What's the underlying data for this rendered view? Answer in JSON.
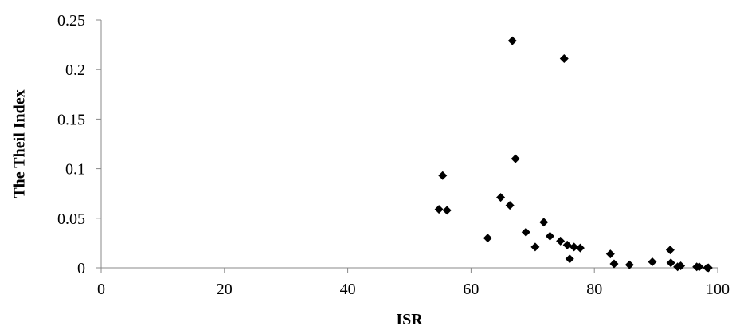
{
  "chart_data": {
    "type": "scatter",
    "title": "",
    "xlabel": "ISR",
    "ylabel": "The Theil Index",
    "xlim": [
      0,
      100
    ],
    "ylim": [
      0,
      0.25
    ],
    "x_ticks": [
      0,
      20,
      40,
      60,
      80,
      100
    ],
    "y_ticks": [
      0,
      0.05,
      0.1,
      0.15,
      0.2,
      0.25
    ],
    "x_tick_labels": [
      "0",
      "20",
      "40",
      "60",
      "80",
      "100"
    ],
    "y_tick_labels": [
      "0",
      "0.05",
      "0.1",
      "0.15",
      "0.2",
      "0.25"
    ],
    "grid": false,
    "legend": "none",
    "marker": "diamond",
    "marker_color": "#000000",
    "series": [
      {
        "points": [
          {
            "x": 54.8,
            "y": 0.059
          },
          {
            "x": 55.4,
            "y": 0.093
          },
          {
            "x": 56.1,
            "y": 0.058
          },
          {
            "x": 62.7,
            "y": 0.03
          },
          {
            "x": 64.8,
            "y": 0.071
          },
          {
            "x": 66.3,
            "y": 0.063
          },
          {
            "x": 66.7,
            "y": 0.229
          },
          {
            "x": 67.2,
            "y": 0.11
          },
          {
            "x": 68.9,
            "y": 0.036
          },
          {
            "x": 70.4,
            "y": 0.021
          },
          {
            "x": 71.8,
            "y": 0.046
          },
          {
            "x": 72.8,
            "y": 0.032
          },
          {
            "x": 74.5,
            "y": 0.027
          },
          {
            "x": 75.1,
            "y": 0.211
          },
          {
            "x": 75.6,
            "y": 0.023
          },
          {
            "x": 76.0,
            "y": 0.009
          },
          {
            "x": 76.7,
            "y": 0.021
          },
          {
            "x": 77.7,
            "y": 0.02
          },
          {
            "x": 82.6,
            "y": 0.014
          },
          {
            "x": 83.2,
            "y": 0.004
          },
          {
            "x": 85.7,
            "y": 0.003
          },
          {
            "x": 89.4,
            "y": 0.006
          },
          {
            "x": 92.3,
            "y": 0.018
          },
          {
            "x": 92.4,
            "y": 0.005
          },
          {
            "x": 93.5,
            "y": 0.001
          },
          {
            "x": 94.0,
            "y": 0.002
          },
          {
            "x": 96.6,
            "y": 0.001
          },
          {
            "x": 97.0,
            "y": 0.001
          },
          {
            "x": 98.3,
            "y": 0.0
          },
          {
            "x": 98.5,
            "y": 0.0
          }
        ]
      }
    ]
  }
}
